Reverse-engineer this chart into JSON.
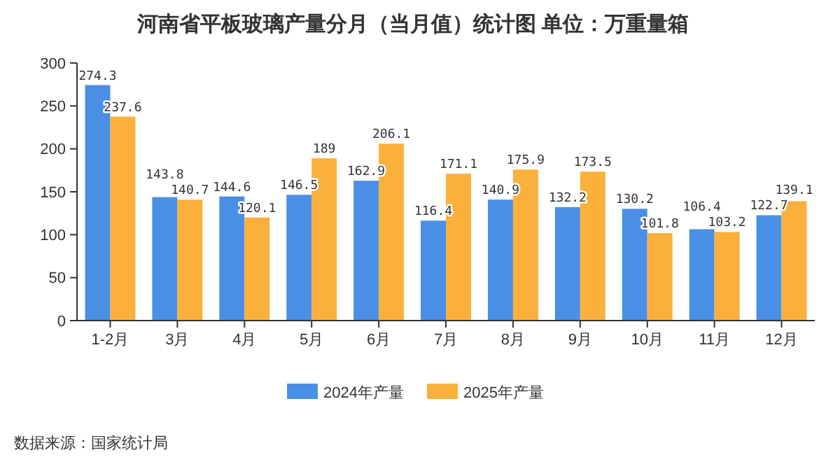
{
  "chart_data": {
    "type": "bar",
    "title": "河南省平板玻璃产量分月（当月值）统计图  单位：万重量箱",
    "categories": [
      "1-2月",
      "3月",
      "4月",
      "5月",
      "6月",
      "7月",
      "8月",
      "9月",
      "10月",
      "11月",
      "12月"
    ],
    "series": [
      {
        "name": "2024年产量",
        "color": "#4a8fe6",
        "values": [
          274.3,
          143.8,
          144.6,
          146.5,
          162.9,
          116.4,
          140.9,
          132.2,
          130.2,
          106.4,
          122.7
        ]
      },
      {
        "name": "2025年产量",
        "color": "#fbb03b",
        "values": [
          237.6,
          140.7,
          120.1,
          189,
          206.1,
          171.1,
          175.9,
          173.5,
          101.8,
          103.2,
          139.1
        ]
      }
    ],
    "ylim": [
      0,
      300
    ],
    "yticks": [
      0,
      50,
      100,
      150,
      200,
      250,
      300
    ],
    "data_labels": true,
    "legend": "bottom",
    "grid": false,
    "annotations": [
      "数据来源：国家统计局"
    ]
  }
}
